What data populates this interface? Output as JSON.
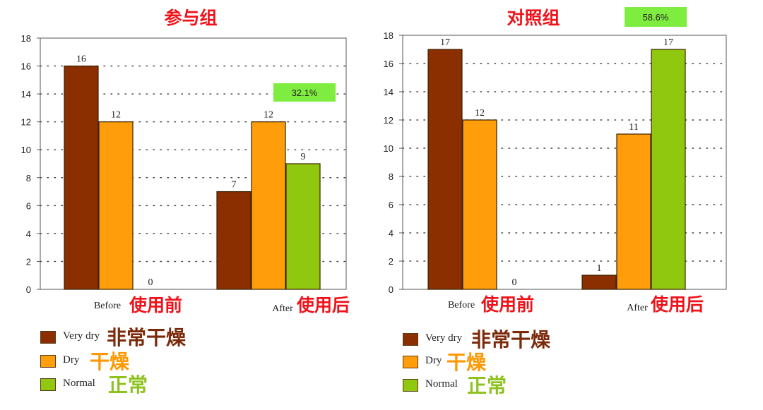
{
  "colors": {
    "very_dry": "#8b2f00",
    "dry": "#ff9e0a",
    "normal": "#8fc80f",
    "badge": "#7fed3f",
    "title_red": "#f0121a",
    "very_dry_cn": "#7a2a0a",
    "dry_cn": "#ff9800",
    "normal_cn": "#8dc21f"
  },
  "legend": {
    "items": [
      {
        "en": "Very dry",
        "cn": "非常干燥",
        "color_key": "very_dry"
      },
      {
        "en": "Dry",
        "cn": "干燥",
        "color_key": "dry"
      },
      {
        "en": "Normal",
        "cn": "正常",
        "color_key": "normal"
      }
    ]
  },
  "chart_data": [
    {
      "type": "bar",
      "title": "参与组",
      "categories": [
        "Before",
        "After"
      ],
      "categories_cn": [
        "使用前",
        "使用后"
      ],
      "series": [
        {
          "name": "Very dry",
          "values": [
            16,
            7
          ]
        },
        {
          "name": "Dry",
          "values": [
            12,
            12
          ]
        },
        {
          "name": "Normal",
          "values": [
            0,
            9
          ]
        }
      ],
      "yticks": [
        0,
        2,
        4,
        6,
        8,
        10,
        12,
        14,
        16,
        18
      ],
      "ylim": [
        0,
        18
      ],
      "grid": "dotted horizontal",
      "annotation": "32.1%"
    },
    {
      "type": "bar",
      "title": "对照组",
      "categories": [
        "Before",
        "After"
      ],
      "categories_cn": [
        "使用前",
        "使用后"
      ],
      "series": [
        {
          "name": "Very dry",
          "values": [
            17,
            1
          ]
        },
        {
          "name": "Dry",
          "values": [
            12,
            11
          ]
        },
        {
          "name": "Normal",
          "values": [
            0,
            17
          ]
        }
      ],
      "yticks": [
        0,
        2,
        4,
        6,
        8,
        10,
        12,
        14,
        16,
        18
      ],
      "ylim": [
        0,
        18
      ],
      "grid": "dotted horizontal",
      "annotation": "58.6%"
    }
  ]
}
